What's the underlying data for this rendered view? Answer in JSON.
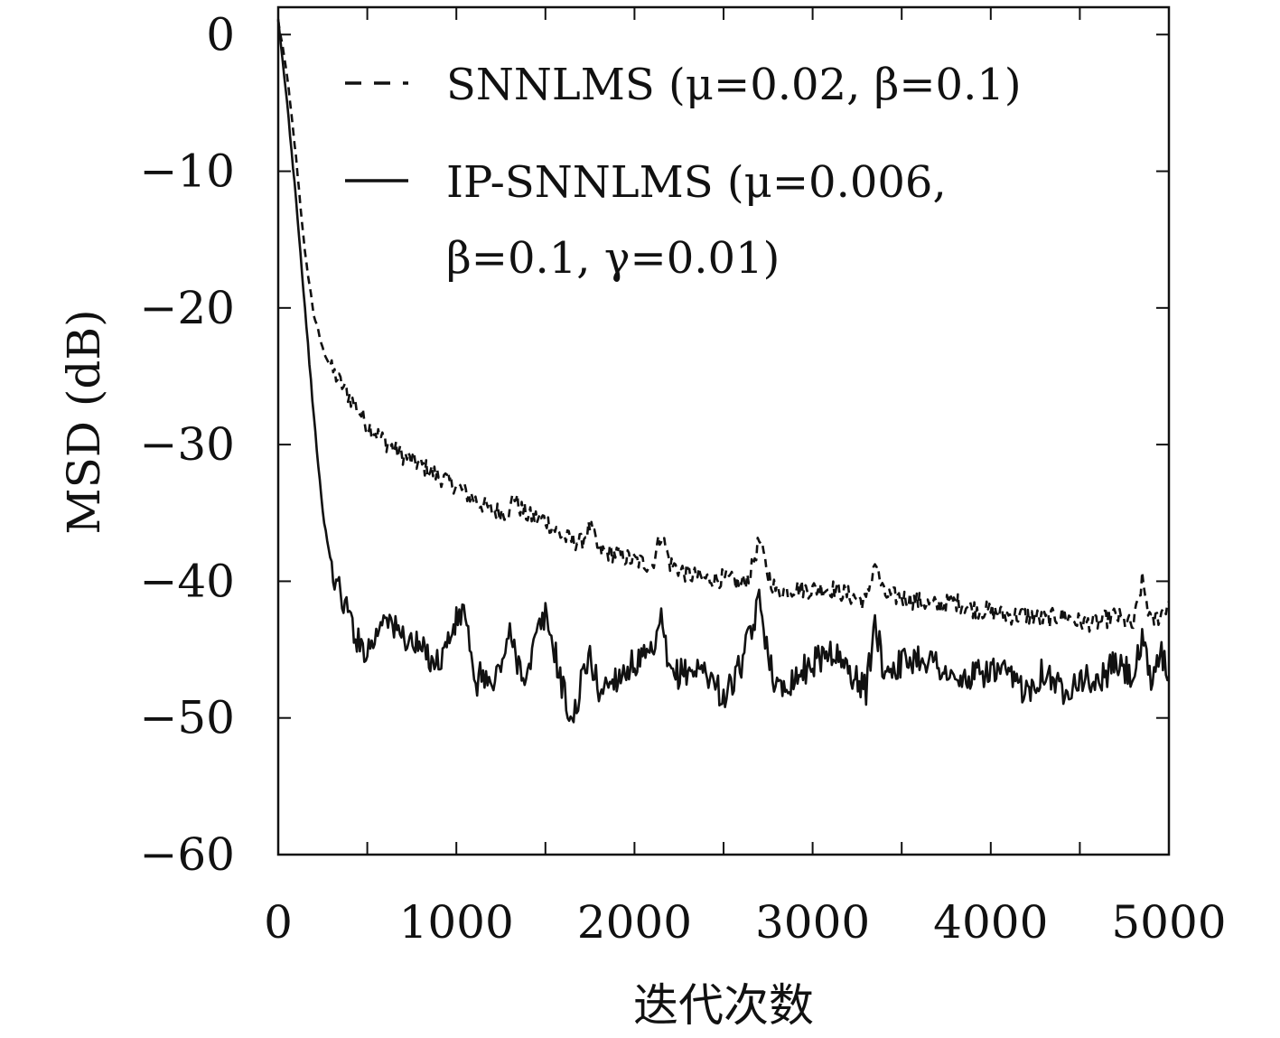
{
  "chart_data": {
    "type": "line",
    "title": "",
    "xlabel": "迭代次数",
    "ylabel": "MSD (dB)",
    "xlim": [
      0,
      5000
    ],
    "ylim": [
      -60,
      2
    ],
    "xticks": [
      0,
      1000,
      2000,
      3000,
      4000,
      5000
    ],
    "yticks": [
      0,
      -10,
      -20,
      -30,
      -40,
      -50,
      -60
    ],
    "xtick_labels": [
      "0",
      "1000",
      "2000",
      "3000",
      "4000",
      "5000"
    ],
    "ytick_labels": [
      "0",
      "−10",
      "−20",
      "−30",
      "−40",
      "−50",
      "−60"
    ],
    "grid": false,
    "legend_position": "top-right",
    "legend": {
      "entry1": "SNNLMS (μ=0.02, β=0.1)",
      "entry2_line1": "IP-SNNLMS (μ=0.006,",
      "entry2_line2": "β=0.1, γ=0.01)"
    },
    "series": [
      {
        "name": "SNNLMS (μ=0.02, β=0.1)",
        "style": "dashed",
        "color": "#111111",
        "x": [
          0,
          50,
          100,
          150,
          200,
          250,
          300,
          350,
          400,
          450,
          500,
          600,
          700,
          800,
          900,
          1000,
          1100,
          1200,
          1300,
          1320,
          1350,
          1400,
          1500,
          1600,
          1700,
          1750,
          1800,
          1900,
          2000,
          2100,
          2150,
          2200,
          2300,
          2400,
          2500,
          2600,
          2650,
          2700,
          2750,
          2800,
          2900,
          3000,
          3100,
          3200,
          3300,
          3350,
          3400,
          3500,
          3600,
          3700,
          3800,
          3900,
          4000,
          4100,
          4200,
          4300,
          4400,
          4500,
          4600,
          4700,
          4800,
          4850,
          4900,
          4950,
          5000
        ],
        "values": [
          1,
          -3,
          -9,
          -16,
          -20.5,
          -23,
          -24.5,
          -25.5,
          -26.5,
          -27.5,
          -28.5,
          -29.8,
          -30.8,
          -31.5,
          -32.3,
          -33,
          -34,
          -34.8,
          -35,
          -33.5,
          -34.5,
          -35.2,
          -35.5,
          -36.8,
          -37.2,
          -36,
          -37.8,
          -38,
          -38.5,
          -38.8,
          -36.5,
          -38.7,
          -39.5,
          -39.8,
          -39.8,
          -40.2,
          -39.5,
          -37,
          -39.5,
          -40.8,
          -40.5,
          -40.6,
          -40.5,
          -41,
          -41.5,
          -38.5,
          -41,
          -41.2,
          -41.5,
          -41.8,
          -41.5,
          -42,
          -42.2,
          -42.5,
          -42.5,
          -42.8,
          -42.5,
          -43,
          -43,
          -42.5,
          -43.3,
          -40,
          -43,
          -42.5,
          -41.5
        ]
      },
      {
        "name": "IP-SNNLMS (μ=0.006, β=0.1, γ=0.01)",
        "style": "solid",
        "color": "#111111",
        "x": [
          0,
          50,
          100,
          150,
          200,
          250,
          300,
          350,
          400,
          450,
          500,
          550,
          600,
          650,
          700,
          800,
          900,
          1000,
          1050,
          1100,
          1150,
          1200,
          1250,
          1300,
          1350,
          1400,
          1450,
          1500,
          1550,
          1600,
          1650,
          1700,
          1750,
          1800,
          1900,
          2000,
          2100,
          2150,
          2200,
          2300,
          2400,
          2500,
          2550,
          2600,
          2650,
          2700,
          2750,
          2800,
          2900,
          3000,
          3100,
          3200,
          3300,
          3350,
          3400,
          3500,
          3600,
          3700,
          3800,
          3900,
          4000,
          4100,
          4200,
          4300,
          4400,
          4500,
          4600,
          4700,
          4800,
          4850,
          4900,
          4950,
          5000
        ],
        "values": [
          1,
          -5,
          -12,
          -20,
          -28,
          -35,
          -39,
          -41,
          -42.5,
          -44.5,
          -45,
          -44,
          -42,
          -43.5,
          -44,
          -45,
          -46,
          -43,
          -42,
          -48,
          -46.5,
          -48,
          -46,
          -44,
          -46,
          -47,
          -44,
          -42.5,
          -45,
          -48,
          -50.5,
          -47.5,
          -45.5,
          -48,
          -47,
          -46,
          -45.5,
          -43,
          -47,
          -46.5,
          -46.5,
          -48.5,
          -47.5,
          -46,
          -44,
          -41.5,
          -45,
          -48,
          -47,
          -46,
          -45,
          -46.5,
          -48,
          -43,
          -46.5,
          -46,
          -45.5,
          -46,
          -47.5,
          -47,
          -46.5,
          -47,
          -48,
          -46.5,
          -48,
          -47,
          -47.5,
          -46,
          -47,
          -44.5,
          -47.5,
          -45,
          -47
        ]
      }
    ]
  }
}
